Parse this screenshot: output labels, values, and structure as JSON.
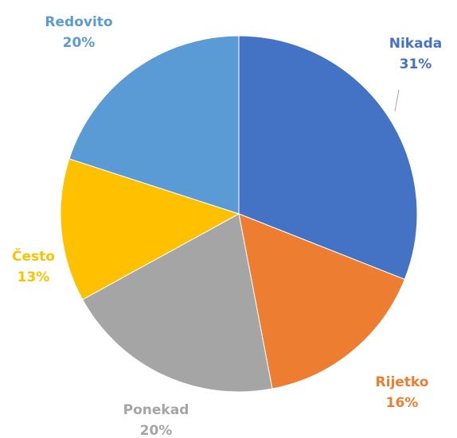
{
  "chart_data": {
    "type": "pie",
    "start_angle": 0,
    "direction": "clockwise",
    "slices": [
      {
        "label": "Nikada",
        "value": 31,
        "value_label": "31%",
        "color": "#4472C4"
      },
      {
        "label": "Rijetko",
        "value": 16,
        "value_label": "16%",
        "color": "#ED7D31"
      },
      {
        "label": "Ponekad",
        "value": 20,
        "value_label": "20%",
        "color": "#A5A5A5"
      },
      {
        "label": "Često",
        "value": 13,
        "value_label": "13%",
        "color": "#FFC000"
      },
      {
        "label": "Redovito",
        "value": 20,
        "value_label": "20%",
        "color": "#5B9BD5"
      }
    ]
  }
}
